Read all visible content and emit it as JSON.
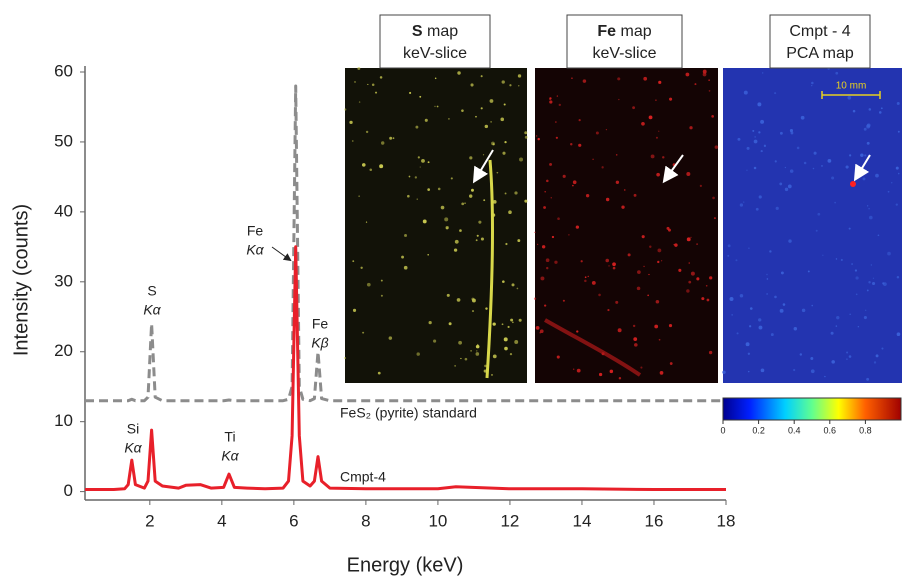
{
  "chart_data": {
    "type": "line",
    "xlabel": "Energy (keV)",
    "ylabel": "Intensity (counts)",
    "xlim": [
      0.2,
      18
    ],
    "ylim": [
      -1.2,
      60
    ],
    "xticks": [
      2,
      4,
      6,
      8,
      10,
      12,
      14,
      16,
      18
    ],
    "yticks": [
      0,
      10,
      20,
      30,
      40,
      50,
      60
    ],
    "x": [
      0.2,
      1.0,
      1.3,
      1.4,
      1.5,
      1.6,
      1.85,
      1.95,
      2.05,
      2.15,
      2.35,
      2.8,
      3.0,
      3.4,
      3.7,
      4.05,
      4.2,
      4.35,
      4.7,
      5.2,
      5.7,
      5.85,
      5.95,
      6.05,
      6.15,
      6.25,
      6.45,
      6.57,
      6.67,
      6.77,
      7.0,
      8.0,
      10.0,
      10.5,
      12.0,
      14.0,
      16.0,
      18.0
    ],
    "series": [
      {
        "name": "FeS₂ (pyrite) standard",
        "color": "#8c8c8c",
        "dashed": true,
        "values": [
          13,
          13,
          13,
          13,
          13.2,
          13,
          13,
          13.5,
          24,
          13.5,
          13,
          13,
          13,
          13,
          13,
          13,
          13.1,
          13,
          13,
          13,
          13,
          13.2,
          15,
          58,
          15,
          13.2,
          13,
          13.3,
          20,
          13.3,
          13,
          13,
          13,
          13,
          13,
          13,
          13,
          13
        ]
      },
      {
        "name": "Cmpt-4",
        "color": "#e8202a",
        "dashed": false,
        "values": [
          0.3,
          0.3,
          0.4,
          1,
          4.5,
          1,
          0.5,
          1.5,
          8.8,
          1.5,
          0.8,
          0.5,
          0.9,
          1,
          0.5,
          0.6,
          2.5,
          0.6,
          0.5,
          0.4,
          0.5,
          1.5,
          8,
          35,
          8,
          1.5,
          0.8,
          1.5,
          5,
          1.5,
          0.5,
          0.4,
          0.4,
          0.7,
          0.4,
          0.4,
          0.3,
          0.3
        ]
      }
    ],
    "annotations": [
      {
        "text": "Si",
        "line": "Kα"
      },
      {
        "text": "S",
        "line": "Kα"
      },
      {
        "text": "Ti",
        "line": "Kα"
      },
      {
        "text": "Fe",
        "line": "Kα"
      },
      {
        "text": "Fe",
        "line": "Kβ"
      }
    ],
    "panels": [
      {
        "title_bold": "S",
        "title": "map",
        "subtitle": "keV-slice"
      },
      {
        "title_bold": "Fe",
        "title": "map",
        "subtitle": "keV-slice"
      },
      {
        "title": "Cmpt - 4",
        "subtitle": "PCA map",
        "scale_bar": "10 mm"
      }
    ],
    "colorbar": {
      "ticks": [
        0,
        0.2,
        0.4,
        0.6,
        0.8
      ],
      "lim": [
        0,
        1
      ]
    }
  }
}
